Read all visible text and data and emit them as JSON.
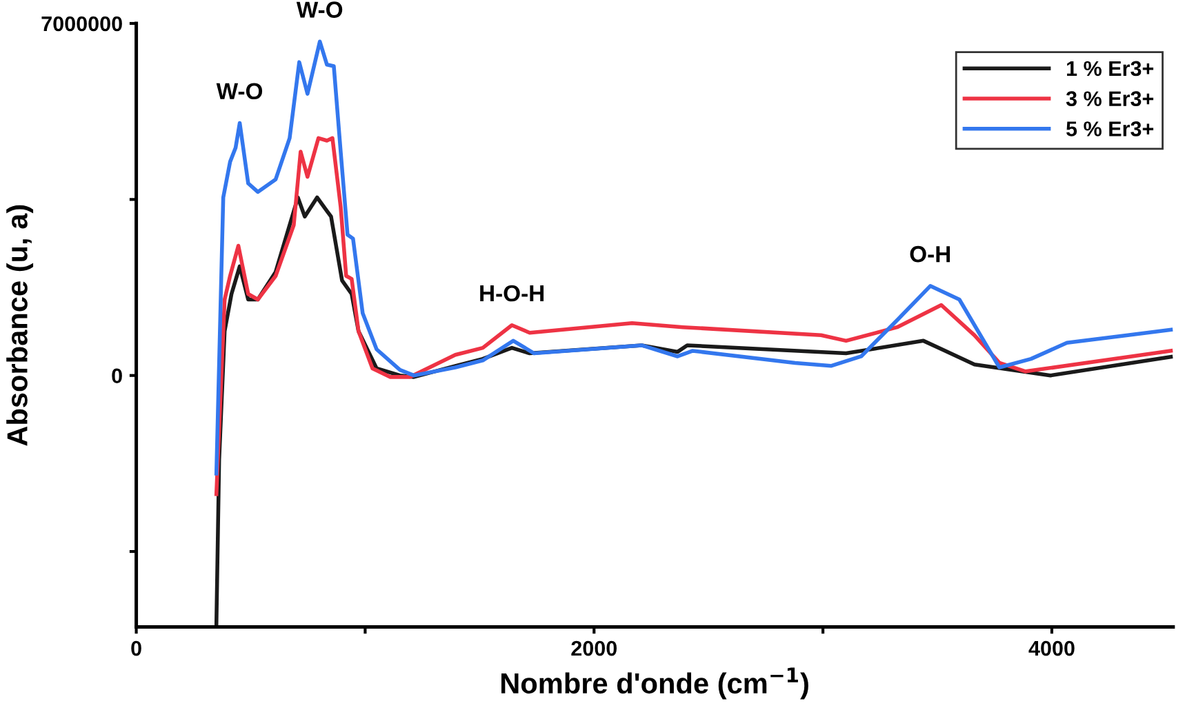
{
  "chart_data": {
    "type": "line",
    "xlabel": "Nombre d'onde (cm$^{−1}$)",
    "ylabel": "Absorbance (u, a)",
    "xlim": [
      0,
      4530
    ],
    "ylim": [
      -5000000,
      7000000
    ],
    "xticks": [
      0,
      {
        "value": 1000,
        "label": null
      },
      2000,
      {
        "value": 3000,
        "label": null
      },
      4000
    ],
    "yticks": [
      {
        "value": -3500000,
        "label": null
      },
      0,
      {
        "value": 3500000,
        "label": null
      },
      7000000
    ],
    "grid": false,
    "legend": "top right",
    "line_style": "solid",
    "marker": "none",
    "annotations": [
      {
        "text": "W-O",
        "x": 452,
        "y": 5020000
      },
      {
        "text": "W-O",
        "x": 802,
        "y": 6640000
      },
      {
        "text": "H-O-H",
        "x": 1641,
        "y": 1000000
      },
      {
        "text": "O-H",
        "x": 3469,
        "y": 1780000
      }
    ],
    "series": [
      {
        "name": "1 % Er3+",
        "color": "#1a1a1a",
        "x": [
          350,
          362,
          386,
          416,
          452,
          489,
          531,
          609,
          706,
          736,
          790,
          833,
          851,
          899,
          941,
          971,
          1050,
          1152,
          1213,
          1394,
          1514,
          1641,
          1719,
          2208,
          2365,
          2407,
          3101,
          3439,
          3662,
          3994,
          4520
        ],
        "values": [
          -4950000,
          -1670000,
          880000,
          1620000,
          2170000,
          1510000,
          1510000,
          2060000,
          3540000,
          3160000,
          3540000,
          3270000,
          3160000,
          1890000,
          1620000,
          880000,
          140000,
          0,
          -30000,
          190000,
          330000,
          550000,
          440000,
          600000,
          470000,
          600000,
          440000,
          690000,
          220000,
          0,
          370000
        ]
      },
      {
        "name": "3 % Er3+",
        "color": "#ee3344",
        "x": [
          350,
          386,
          410,
          446,
          489,
          531,
          609,
          688,
          718,
          748,
          796,
          833,
          857,
          893,
          917,
          941,
          971,
          1032,
          1110,
          1195,
          1394,
          1514,
          1641,
          1719,
          2166,
          2389,
          2992,
          3101,
          3324,
          3517,
          3662,
          3771,
          3885,
          4520
        ],
        "values": [
          -2360000,
          1510000,
          1980000,
          2580000,
          1620000,
          1510000,
          1980000,
          2990000,
          4450000,
          3950000,
          4720000,
          4670000,
          4720000,
          3350000,
          1980000,
          1920000,
          880000,
          140000,
          -30000,
          -30000,
          410000,
          550000,
          1000000,
          850000,
          1040000,
          960000,
          800000,
          690000,
          960000,
          1400000,
          800000,
          250000,
          80000,
          490000
        ]
      },
      {
        "name": "5 % Er3+",
        "color": "#3377ee",
        "x": [
          350,
          380,
          410,
          434,
          452,
          489,
          531,
          609,
          670,
          712,
          748,
          802,
          833,
          863,
          893,
          923,
          947,
          989,
          1050,
          1152,
          1213,
          1394,
          1514,
          1647,
          1738,
          2208,
          2365,
          2431,
          2878,
          3035,
          3167,
          3324,
          3469,
          3596,
          3771,
          3909,
          4066,
          4332,
          4520
        ],
        "values": [
          -1950000,
          3540000,
          4250000,
          4530000,
          5020000,
          3820000,
          3650000,
          3900000,
          4720000,
          6230000,
          5600000,
          6640000,
          6180000,
          6150000,
          4450000,
          2800000,
          2720000,
          1240000,
          520000,
          110000,
          0,
          160000,
          300000,
          690000,
          440000,
          600000,
          380000,
          490000,
          250000,
          190000,
          380000,
          1100000,
          1780000,
          1510000,
          160000,
          330000,
          650000,
          800000,
          910000
        ]
      }
    ]
  }
}
